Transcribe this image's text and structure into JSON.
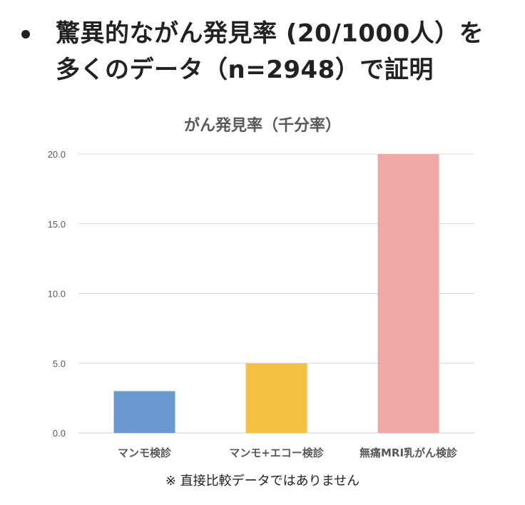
{
  "headline": {
    "bullet_icon": "bullet-dot",
    "line1": "驚異的ながん発見率 (20/1000人）を",
    "line2": "多くのデータ（n=2948）で証明"
  },
  "chart_data": {
    "type": "bar",
    "title": "がん発見率（千分率）",
    "categories": [
      "マンモ検診",
      "マンモ+エコー検診",
      "無痛MRI乳がん検診"
    ],
    "values": [
      3.0,
      5.0,
      20.0
    ],
    "colors": [
      "#6a9ad1",
      "#f4c143",
      "#f0a8a4"
    ],
    "ylim": [
      0,
      20
    ],
    "yticks": [
      "0.0",
      "5.0",
      "10.0",
      "15.0",
      "20.0"
    ],
    "ytick_values": [
      0,
      5,
      10,
      15,
      20
    ],
    "grid": true,
    "xlabel": "",
    "ylabel": ""
  },
  "footnote": "※ 直接比較データではありません"
}
